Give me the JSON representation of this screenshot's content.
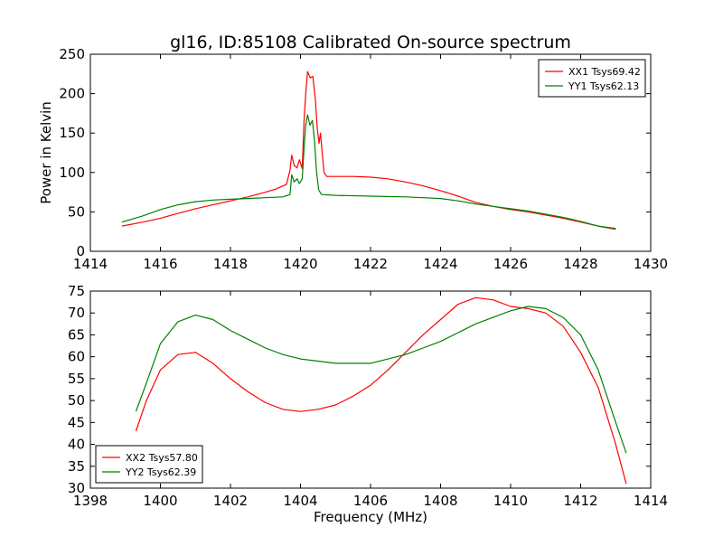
{
  "chart_data": [
    {
      "type": "line",
      "title": "gl16, ID:85108 Calibrated On-source spectrum",
      "xlabel": "",
      "ylabel": "Power in Kelvin",
      "xlim": [
        1414,
        1430
      ],
      "ylim": [
        0,
        250
      ],
      "xticks": [
        1414,
        1416,
        1418,
        1420,
        1422,
        1424,
        1426,
        1428,
        1430
      ],
      "yticks": [
        0,
        50,
        100,
        150,
        200,
        250
      ],
      "legend_position": "upper-right",
      "series": [
        {
          "name": "XX1 Tsys69.42",
          "color": "#ff0000",
          "points": [
            [
              1414.9,
              32
            ],
            [
              1415.5,
              37
            ],
            [
              1416,
              42
            ],
            [
              1416.5,
              48
            ],
            [
              1417,
              54
            ],
            [
              1417.5,
              59
            ],
            [
              1418,
              64
            ],
            [
              1418.5,
              69
            ],
            [
              1419,
              75
            ],
            [
              1419.3,
              79
            ],
            [
              1419.6,
              85
            ],
            [
              1419.7,
              103
            ],
            [
              1419.75,
              122
            ],
            [
              1419.82,
              109
            ],
            [
              1419.9,
              106
            ],
            [
              1419.97,
              116
            ],
            [
              1420.05,
              105
            ],
            [
              1420.1,
              165
            ],
            [
              1420.15,
              200
            ],
            [
              1420.2,
              228
            ],
            [
              1420.28,
              220
            ],
            [
              1420.35,
              222
            ],
            [
              1420.42,
              195
            ],
            [
              1420.48,
              155
            ],
            [
              1420.53,
              137
            ],
            [
              1420.57,
              150
            ],
            [
              1420.62,
              125
            ],
            [
              1420.67,
              100
            ],
            [
              1420.75,
              95
            ],
            [
              1421.5,
              95
            ],
            [
              1422,
              94
            ],
            [
              1422.5,
              92
            ],
            [
              1423,
              88
            ],
            [
              1423.5,
              83
            ],
            [
              1424,
              77
            ],
            [
              1424.5,
              70
            ],
            [
              1425,
              62
            ],
            [
              1425.5,
              57
            ],
            [
              1426,
              53
            ],
            [
              1426.5,
              50
            ],
            [
              1427,
              46
            ],
            [
              1427.5,
              42
            ],
            [
              1428,
              37
            ],
            [
              1428.5,
              32
            ],
            [
              1429,
              28
            ]
          ]
        },
        {
          "name": "YY1 Tsys62.13",
          "color": "#008000",
          "points": [
            [
              1414.9,
              37
            ],
            [
              1415.5,
              45
            ],
            [
              1416,
              53
            ],
            [
              1416.5,
              59
            ],
            [
              1417,
              63
            ],
            [
              1417.5,
              65
            ],
            [
              1418,
              66
            ],
            [
              1418.5,
              67
            ],
            [
              1419,
              68
            ],
            [
              1419.5,
              69
            ],
            [
              1419.7,
              72
            ],
            [
              1419.75,
              97
            ],
            [
              1419.82,
              88
            ],
            [
              1419.9,
              92
            ],
            [
              1419.97,
              86
            ],
            [
              1420.05,
              92
            ],
            [
              1420.1,
              130
            ],
            [
              1420.15,
              160
            ],
            [
              1420.2,
              173
            ],
            [
              1420.27,
              160
            ],
            [
              1420.34,
              166
            ],
            [
              1420.4,
              140
            ],
            [
              1420.46,
              100
            ],
            [
              1420.52,
              78
            ],
            [
              1420.6,
              72
            ],
            [
              1421,
              71
            ],
            [
              1422,
              70
            ],
            [
              1423,
              69
            ],
            [
              1423.5,
              68
            ],
            [
              1424,
              67
            ],
            [
              1424.5,
              64
            ],
            [
              1425,
              60
            ],
            [
              1425.5,
              57
            ],
            [
              1426,
              54
            ],
            [
              1426.5,
              51
            ],
            [
              1427,
              47
            ],
            [
              1427.5,
              43
            ],
            [
              1428,
              38
            ],
            [
              1428.5,
              32
            ],
            [
              1429,
              29
            ]
          ]
        }
      ]
    },
    {
      "type": "line",
      "title": "",
      "xlabel": "Frequency (MHz)",
      "ylabel": "",
      "xlim": [
        1398,
        1414
      ],
      "ylim": [
        30,
        75
      ],
      "xticks": [
        1398,
        1400,
        1402,
        1404,
        1406,
        1408,
        1410,
        1412,
        1414
      ],
      "yticks": [
        30,
        35,
        40,
        45,
        50,
        55,
        60,
        65,
        70,
        75
      ],
      "legend_position": "lower-left",
      "series": [
        {
          "name": "XX2 Tsys57.80",
          "color": "#ff0000",
          "points": [
            [
              1399.3,
              43
            ],
            [
              1399.6,
              50
            ],
            [
              1400,
              57
            ],
            [
              1400.5,
              60.5
            ],
            [
              1401,
              61
            ],
            [
              1401.5,
              58.5
            ],
            [
              1402,
              55
            ],
            [
              1402.5,
              52
            ],
            [
              1403,
              49.5
            ],
            [
              1403.5,
              48
            ],
            [
              1404,
              47.5
            ],
            [
              1404.5,
              48
            ],
            [
              1405,
              49
            ],
            [
              1405.5,
              51
            ],
            [
              1406,
              53.5
            ],
            [
              1406.5,
              57
            ],
            [
              1407,
              61
            ],
            [
              1407.5,
              65
            ],
            [
              1408,
              68.5
            ],
            [
              1408.5,
              72
            ],
            [
              1409,
              73.5
            ],
            [
              1409.5,
              73
            ],
            [
              1410,
              71.5
            ],
            [
              1410.5,
              71
            ],
            [
              1411,
              70
            ],
            [
              1411.5,
              67
            ],
            [
              1412,
              61
            ],
            [
              1412.5,
              53
            ],
            [
              1413,
              40
            ],
            [
              1413.3,
              31
            ]
          ]
        },
        {
          "name": "YY2 Tsys62.39",
          "color": "#008000",
          "points": [
            [
              1399.3,
              47.5
            ],
            [
              1399.6,
              54
            ],
            [
              1400,
              63
            ],
            [
              1400.5,
              68
            ],
            [
              1401,
              69.5
            ],
            [
              1401.5,
              68.5
            ],
            [
              1402,
              66
            ],
            [
              1402.5,
              64
            ],
            [
              1403,
              62
            ],
            [
              1403.5,
              60.5
            ],
            [
              1404,
              59.5
            ],
            [
              1404.5,
              59
            ],
            [
              1405,
              58.5
            ],
            [
              1405.5,
              58.5
            ],
            [
              1406,
              58.5
            ],
            [
              1406.5,
              59.5
            ],
            [
              1407,
              60.5
            ],
            [
              1407.5,
              62
            ],
            [
              1408,
              63.5
            ],
            [
              1408.5,
              65.5
            ],
            [
              1409,
              67.5
            ],
            [
              1409.5,
              69
            ],
            [
              1410,
              70.5
            ],
            [
              1410.5,
              71.5
            ],
            [
              1411,
              71
            ],
            [
              1411.5,
              69
            ],
            [
              1412,
              65
            ],
            [
              1412.5,
              57
            ],
            [
              1413,
              45
            ],
            [
              1413.3,
              38
            ]
          ]
        }
      ]
    }
  ]
}
